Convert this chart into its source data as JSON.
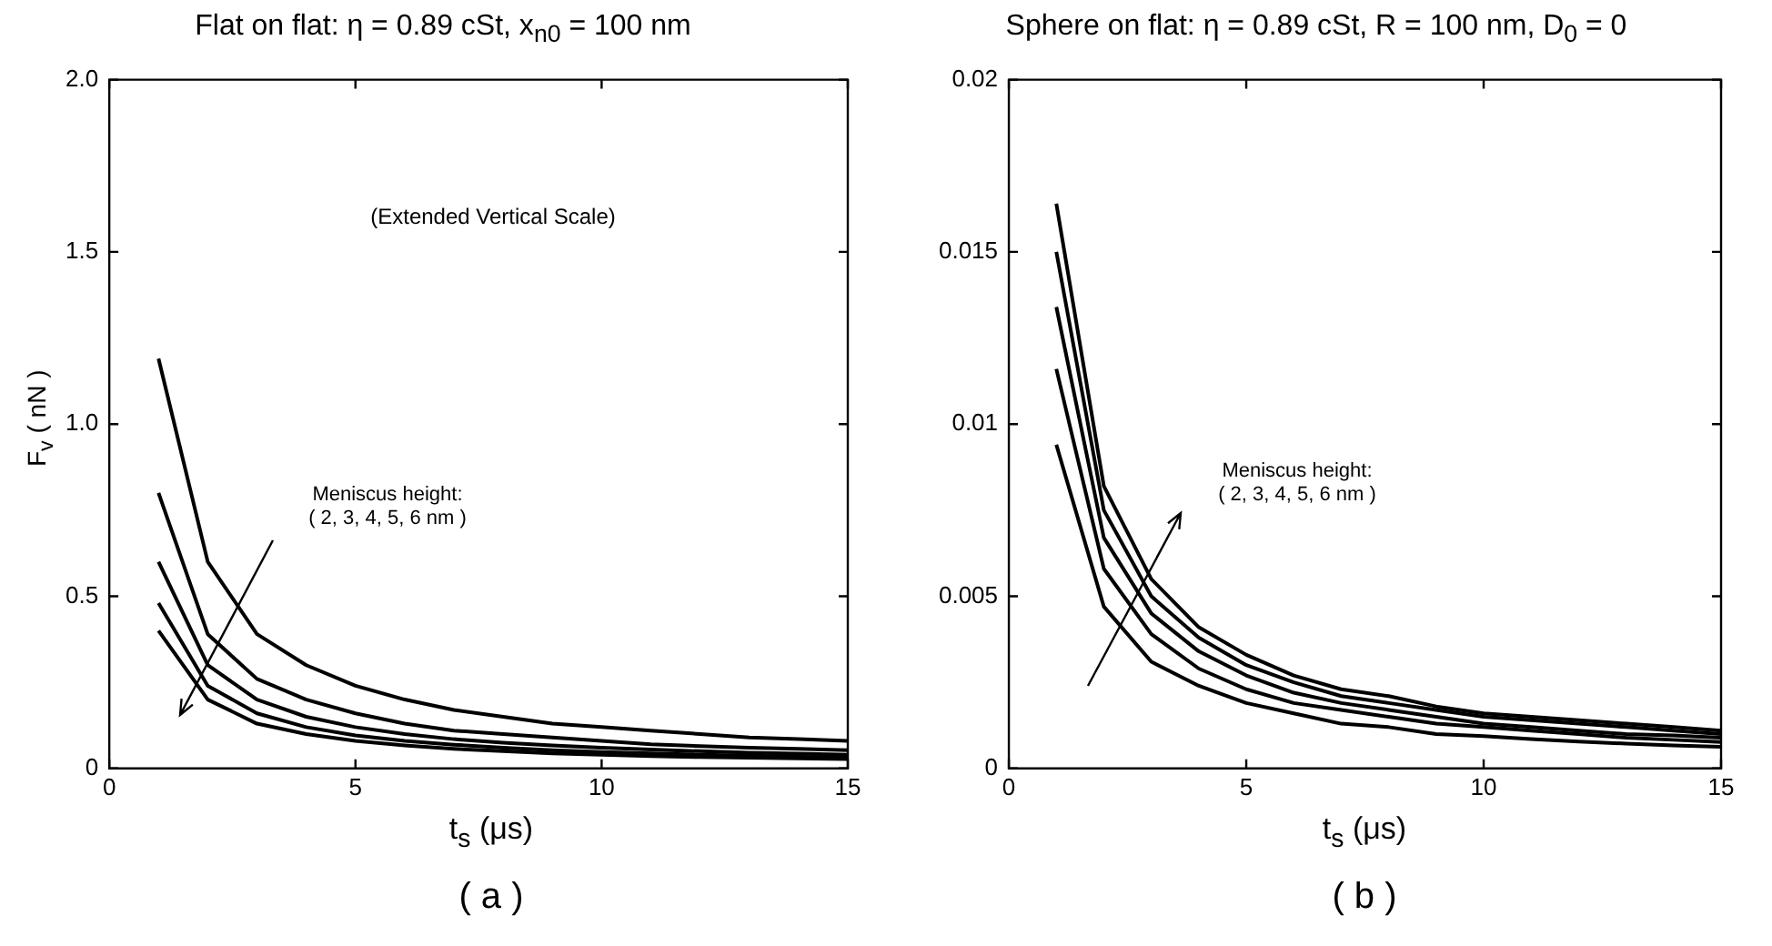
{
  "chart_data": [
    {
      "type": "line",
      "title": "Flat on flat: η = 0.89 cSt, x$_{n0}$ = 100 nm",
      "xlabel": "t$_{s}$ (μs)",
      "ylabel": "F$_{v}$ ( nN )",
      "x": [
        1,
        2,
        3,
        4,
        5,
        6,
        7,
        8,
        9,
        10,
        11,
        12,
        13,
        14,
        15
      ],
      "series": [
        {
          "color": "#000000",
          "values": [
            1.19,
            0.6,
            0.39,
            0.3,
            0.24,
            0.2,
            0.17,
            0.15,
            0.13,
            0.12,
            0.11,
            0.1,
            0.09,
            0.085,
            0.08
          ]
        },
        {
          "color": "#000000",
          "values": [
            0.8,
            0.39,
            0.26,
            0.2,
            0.16,
            0.13,
            0.11,
            0.1,
            0.09,
            0.08,
            0.07,
            0.065,
            0.06,
            0.057,
            0.053
          ]
        },
        {
          "color": "#000000",
          "values": [
            0.6,
            0.3,
            0.2,
            0.15,
            0.12,
            0.1,
            0.085,
            0.075,
            0.067,
            0.06,
            0.055,
            0.05,
            0.046,
            0.043,
            0.04
          ]
        },
        {
          "color": "#000000",
          "values": [
            0.48,
            0.24,
            0.16,
            0.12,
            0.096,
            0.08,
            0.069,
            0.06,
            0.053,
            0.048,
            0.044,
            0.04,
            0.037,
            0.034,
            0.032
          ]
        },
        {
          "color": "#000000",
          "values": [
            0.4,
            0.2,
            0.13,
            0.1,
            0.08,
            0.067,
            0.057,
            0.05,
            0.044,
            0.04,
            0.036,
            0.033,
            0.031,
            0.029,
            0.027
          ]
        }
      ],
      "xlim": [
        0,
        15
      ],
      "xticks": [
        0,
        5,
        10,
        15
      ],
      "ylim": [
        0,
        2
      ],
      "yticks": [
        0,
        0.5,
        {
          "value": 1,
          "label": "1.0"
        },
        1.5,
        {
          "value": 2,
          "label": "2.0"
        }
      ],
      "grid": false,
      "legend": false,
      "marker": "none",
      "line_style": "solid",
      "annotations": [
        "(Extended Vertical Scale)",
        "Meniscus height:\n( 2, 3, 4, 5, 6 nm )",
        "( a )"
      ]
    },
    {
      "type": "line",
      "title": "Sphere on flat: η = 0.89 cSt, R = 100 nm, D$_{0}$ = 0",
      "xlabel": "t$_{s}$ (μs)",
      "x": [
        1,
        2,
        3,
        4,
        5,
        6,
        7,
        8,
        9,
        10,
        11,
        12,
        13,
        14,
        15
      ],
      "series": [
        {
          "color": "#000000",
          "values": [
            0.0164,
            0.0082,
            0.0055,
            0.0041,
            0.0033,
            0.0027,
            0.0023,
            0.0021,
            0.0018,
            0.0016,
            0.0015,
            0.0014,
            0.0013,
            0.0012,
            0.0011
          ]
        },
        {
          "color": "#000000",
          "values": [
            0.015,
            0.0075,
            0.005,
            0.0038,
            0.003,
            0.0025,
            0.0021,
            0.0019,
            0.0017,
            0.0015,
            0.0014,
            0.0013,
            0.0012,
            0.0011,
            0.001
          ]
        },
        {
          "color": "#000000",
          "values": [
            0.0134,
            0.0067,
            0.0045,
            0.0034,
            0.0027,
            0.0022,
            0.0019,
            0.0017,
            0.0015,
            0.0013,
            0.0012,
            0.0011,
            0.001,
            0.00096,
            0.00089
          ]
        },
        {
          "color": "#000000",
          "values": [
            0.0116,
            0.0058,
            0.0039,
            0.0029,
            0.0023,
            0.0019,
            0.0017,
            0.0015,
            0.0013,
            0.0012,
            0.0011,
            0.001,
            0.00089,
            0.00083,
            0.00077
          ]
        },
        {
          "color": "#000000",
          "values": [
            0.0094,
            0.0047,
            0.0031,
            0.0024,
            0.0019,
            0.0016,
            0.0013,
            0.0012,
            0.001,
            0.00094,
            0.00085,
            0.00078,
            0.00072,
            0.00067,
            0.00063
          ]
        }
      ],
      "xlim": [
        0,
        15
      ],
      "xticks": [
        0,
        5,
        10,
        15
      ],
      "ylim": [
        0,
        0.02
      ],
      "yticks": [
        0,
        0.005,
        0.01,
        0.015,
        0.02
      ],
      "grid": false,
      "legend": false,
      "marker": "none",
      "line_style": "solid",
      "annotations": [
        "Meniscus height:\n( 2, 3, 4, 5, 6 nm )",
        "( b )"
      ]
    }
  ]
}
